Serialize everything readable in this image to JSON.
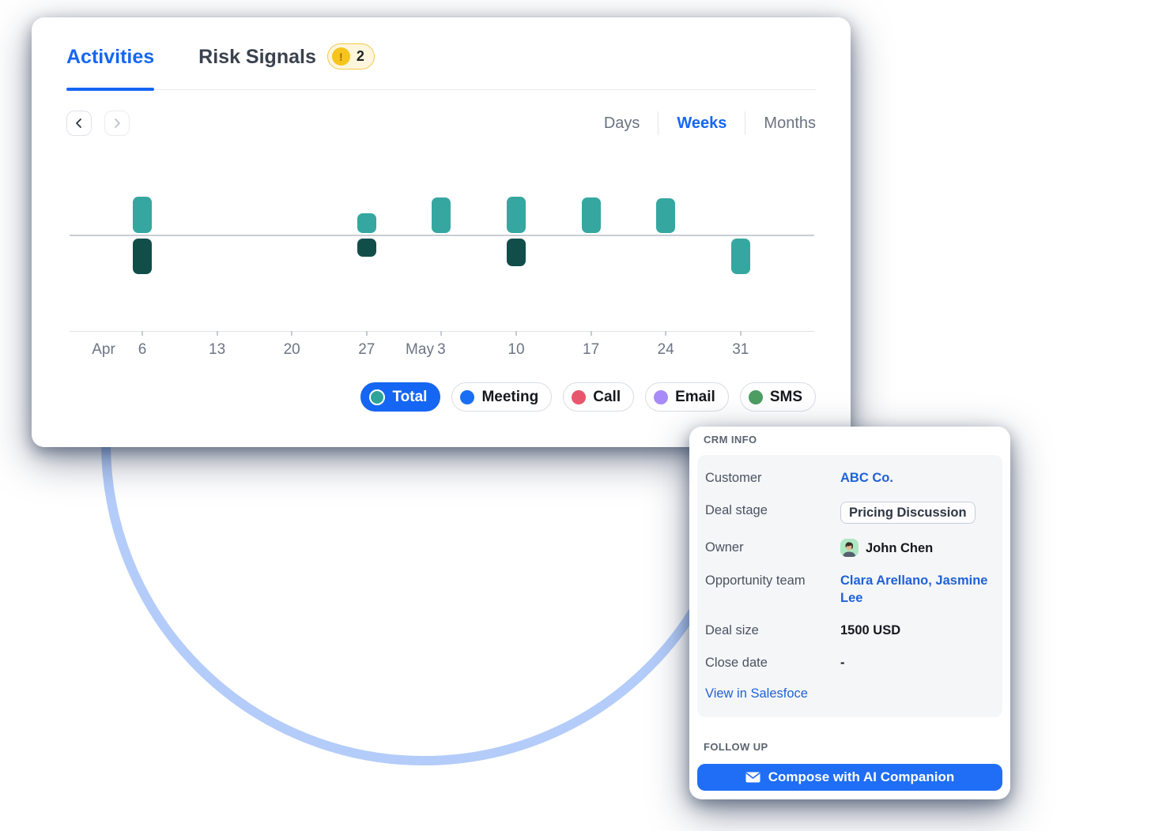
{
  "activity_card": {
    "tabs": {
      "activities": "Activities",
      "risk_signals": "Risk Signals",
      "risk_badge_icon": "!",
      "risk_badge_count": "2"
    },
    "range_options": {
      "days": "Days",
      "weeks": "Weeks",
      "months": "Months",
      "selected": "Weeks"
    }
  },
  "chart_data": {
    "type": "bar",
    "subtype": "diverging weekly activity timeline (bars above and below a center line, y-axis unlabeled)",
    "categories": [
      "Apr 6",
      "Apr 13",
      "Apr 20",
      "Apr 27",
      "May 3",
      "May 10",
      "May 17",
      "May 24",
      "May 31"
    ],
    "tick_labels": [
      "6",
      "13",
      "20",
      "27",
      "3",
      "10",
      "17",
      "24",
      "31"
    ],
    "month_labels": [
      {
        "text": "Apr",
        "x": 91
      },
      {
        "text": "May",
        "x": 491
      }
    ],
    "series": [
      {
        "name": "above-line",
        "values": [
          46,
          0,
          0,
          25,
          45,
          46,
          45,
          44,
          0
        ]
      },
      {
        "name": "below-line",
        "values": [
          45,
          0,
          0,
          23,
          0,
          35,
          0,
          0,
          45
        ]
      }
    ],
    "below_bar_styles": [
      "dark",
      null,
      null,
      "dark",
      null,
      "dark",
      null,
      null,
      "light"
    ],
    "value_units": "relative bar height in px (no numeric y-axis shown)",
    "grid": false,
    "legend_position": "bottom-right"
  },
  "legend": {
    "items": [
      {
        "label": "Total",
        "color": "#2ea49b",
        "selected": true
      },
      {
        "label": "Meeting",
        "color": "#1a6ef5",
        "selected": false
      },
      {
        "label": "Call",
        "color": "#e8566d",
        "selected": false
      },
      {
        "label": "Email",
        "color": "#a88bf8",
        "selected": false
      },
      {
        "label": "SMS",
        "color": "#4e9d65",
        "selected": false
      }
    ]
  },
  "crm_card": {
    "section_title": "CRM INFO",
    "rows": {
      "customer": {
        "label": "Customer",
        "value": "ABC Co."
      },
      "deal_stage": {
        "label": "Deal stage",
        "value": "Pricing Discussion"
      },
      "owner": {
        "label": "Owner",
        "value": "John Chen"
      },
      "opportunity_team": {
        "label": "Opportunity team",
        "value": "Clara Arellano, Jasmine Lee"
      },
      "deal_size": {
        "label": "Deal size",
        "value": "1500 USD"
      },
      "close_date": {
        "label": "Close date",
        "value": "-"
      }
    },
    "view_link": "View in Salesfoce",
    "follow_up_title": "FOLLOW UP",
    "compose_button": "Compose with AI Companion"
  },
  "colors": {
    "accent_blue": "#1566f2",
    "link_blue": "#1e62d6",
    "teal": "#35a7a0",
    "dark_teal": "#114e4a",
    "baseline_gray": "#c8cdd5",
    "badge_yellow": "#f5c51e",
    "badge_border": "#f2c94c"
  }
}
